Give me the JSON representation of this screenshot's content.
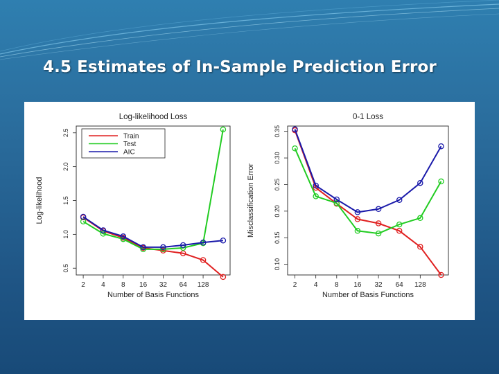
{
  "slide": {
    "title": "4.5 Estimates of In-Sample Prediction Error"
  },
  "colors": {
    "train": "#e02020",
    "test": "#22cc22",
    "aic": "#1a1aaa"
  },
  "chart_data": [
    {
      "type": "line",
      "title": "Log-likelihood Loss",
      "xlabel": "Number of Basis Functions",
      "ylabel": "Log-likelihood",
      "x_ticks": [
        "2",
        "4",
        "8",
        "16",
        "32",
        "64",
        "128"
      ],
      "x": [
        2,
        4,
        8,
        16,
        32,
        64,
        128,
        256
      ],
      "yticks": [
        "0.5",
        "1.0",
        "1.5",
        "2.0",
        "2.5"
      ],
      "ylim": [
        0.4,
        2.6
      ],
      "legend": {
        "placement": "top-left",
        "entries": [
          "Train",
          "Test",
          "AIC"
        ]
      },
      "series": [
        {
          "name": "Train",
          "color": "#e02020",
          "values": [
            1.25,
            1.05,
            0.95,
            0.8,
            0.76,
            0.72,
            0.62,
            0.37
          ]
        },
        {
          "name": "Test",
          "color": "#22cc22",
          "values": [
            1.19,
            1.01,
            0.93,
            0.78,
            0.78,
            0.8,
            0.87,
            2.55
          ]
        },
        {
          "name": "AIC",
          "color": "#1a1aaa",
          "values": [
            1.26,
            1.06,
            0.97,
            0.81,
            0.81,
            0.84,
            0.88,
            0.91
          ]
        }
      ]
    },
    {
      "type": "line",
      "title": "0-1 Loss",
      "xlabel": "Number of Basis Functions",
      "ylabel": "Misclassification Error",
      "x_ticks": [
        "2",
        "4",
        "8",
        "16",
        "32",
        "64",
        "128"
      ],
      "x": [
        2,
        4,
        8,
        16,
        32,
        64,
        128,
        256
      ],
      "yticks": [
        "0.10",
        "0.15",
        "0.20",
        "0.25",
        "0.30",
        "0.35"
      ],
      "ylim": [
        0.08,
        0.36
      ],
      "series": [
        {
          "name": "Train",
          "color": "#e02020",
          "values": [
            0.352,
            0.244,
            0.214,
            0.185,
            0.177,
            0.163,
            0.133,
            0.08
          ]
        },
        {
          "name": "Test",
          "color": "#22cc22",
          "values": [
            0.318,
            0.228,
            0.215,
            0.163,
            0.158,
            0.175,
            0.187,
            0.256
          ]
        },
        {
          "name": "AIC",
          "color": "#1a1aaa",
          "values": [
            0.354,
            0.248,
            0.222,
            0.198,
            0.204,
            0.221,
            0.253,
            0.322
          ]
        }
      ]
    }
  ]
}
